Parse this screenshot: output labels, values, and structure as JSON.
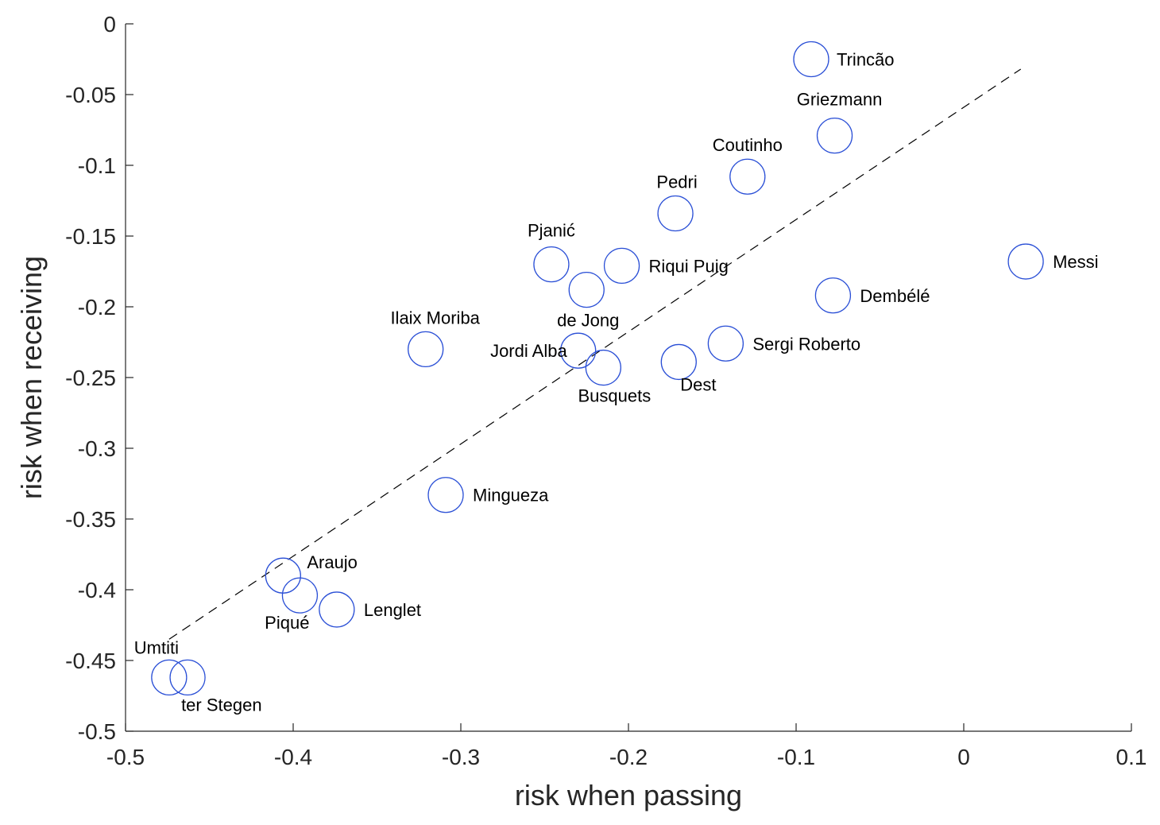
{
  "chart_data": {
    "type": "scatter",
    "title": "",
    "xlabel": "risk when passing",
    "ylabel": "risk when receiving",
    "xlim": [
      -0.5,
      0.1
    ],
    "ylim": [
      -0.5,
      0
    ],
    "xticks": [
      -0.5,
      -0.4,
      -0.3,
      -0.2,
      -0.1,
      0,
      0.1
    ],
    "yticks": [
      0,
      -0.05,
      -0.1,
      -0.15,
      -0.2,
      -0.25,
      -0.3,
      -0.35,
      -0.4,
      -0.45,
      -0.5
    ],
    "xtick_labels": [
      "-0.5",
      "-0.4",
      "-0.3",
      "-0.2",
      "-0.1",
      "0",
      "0.1"
    ],
    "ytick_labels": [
      "0",
      "-0.05",
      "-0.1",
      "-0.15",
      "-0.2",
      "-0.25",
      "-0.3",
      "-0.35",
      "-0.4",
      "-0.45",
      "-0.5"
    ],
    "grid": false,
    "marker": "open-circle",
    "marker_color": "#2a4fd6",
    "trend_line": {
      "style": "dashed",
      "color": "#000000",
      "x": [
        -0.474,
        0.034
      ],
      "y": [
        -0.435,
        -0.032
      ]
    },
    "points": [
      {
        "label": "Trincão",
        "x": -0.091,
        "y": -0.025,
        "label_pos": "right"
      },
      {
        "label": "Griezmann",
        "x": -0.077,
        "y": -0.079,
        "label_pos": "above"
      },
      {
        "label": "Coutinho",
        "x": -0.129,
        "y": -0.108,
        "label_pos": "above"
      },
      {
        "label": "Pedri",
        "x": -0.172,
        "y": -0.134,
        "label_pos": "above"
      },
      {
        "label": "Pjanić",
        "x": -0.246,
        "y": -0.17,
        "label_pos": "above"
      },
      {
        "label": "Riqui Puig",
        "x": -0.204,
        "y": -0.171,
        "label_pos": "right"
      },
      {
        "label": "de Jong",
        "x": -0.225,
        "y": -0.188,
        "label_pos": "below"
      },
      {
        "label": "Messi",
        "x": 0.037,
        "y": -0.168,
        "label_pos": "right"
      },
      {
        "label": "Dembélé",
        "x": -0.078,
        "y": -0.192,
        "label_pos": "right"
      },
      {
        "label": "Sergi Roberto",
        "x": -0.142,
        "y": -0.226,
        "label_pos": "right"
      },
      {
        "label": "Ilaix Moriba",
        "x": -0.321,
        "y": -0.23,
        "label_pos": "above"
      },
      {
        "label": "Jordi Alba",
        "x": -0.23,
        "y": -0.231,
        "label_pos": "left"
      },
      {
        "label": "Busquets",
        "x": -0.215,
        "y": -0.243,
        "label_pos": "below"
      },
      {
        "label": "Dest",
        "x": -0.17,
        "y": -0.239,
        "label_pos": "below-right"
      },
      {
        "label": "Mingueza",
        "x": -0.309,
        "y": -0.333,
        "label_pos": "right"
      },
      {
        "label": "Araujo",
        "x": -0.406,
        "y": -0.39,
        "label_pos": "above-right"
      },
      {
        "label": "Piqué",
        "x": -0.396,
        "y": -0.404,
        "label_pos": "below-left"
      },
      {
        "label": "Lenglet",
        "x": -0.374,
        "y": -0.414,
        "label_pos": "right"
      },
      {
        "label": "Umtiti",
        "x": -0.474,
        "y": -0.462,
        "label_pos": "above"
      },
      {
        "label": "ter Stegen",
        "x": -0.463,
        "y": -0.462,
        "label_pos": "below-right"
      }
    ]
  }
}
